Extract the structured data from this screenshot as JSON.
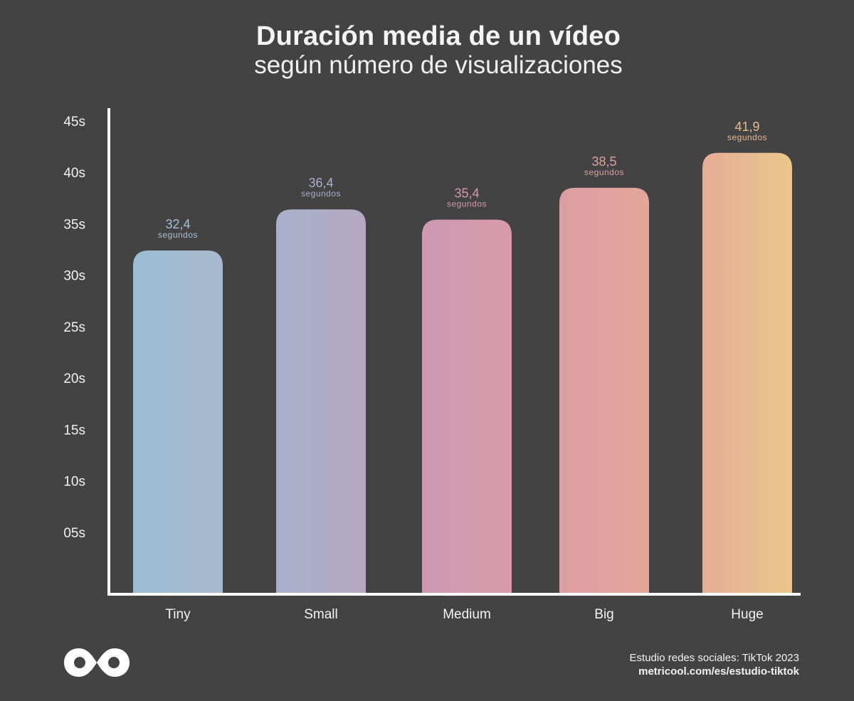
{
  "header": {
    "title": "Duración media de un vídeo",
    "subtitle": "según número de visualizaciones"
  },
  "chart_data": {
    "type": "bar",
    "title": "Duración media de un vídeo",
    "subtitle": "según número de visualizaciones",
    "categories": [
      "Tiny",
      "Small",
      "Medium",
      "Big",
      "Huge"
    ],
    "values": [
      32.4,
      36.4,
      35.4,
      38.5,
      41.9
    ],
    "value_labels": [
      "32,4",
      "36,4",
      "35,4",
      "38,5",
      "41,9"
    ],
    "value_unit": "segundos",
    "yticks": [
      "05s",
      "10s",
      "15s",
      "20s",
      "25s",
      "30s",
      "35s",
      "40s",
      "45s"
    ],
    "ytick_values": [
      5,
      10,
      15,
      20,
      25,
      30,
      35,
      40,
      45
    ],
    "ylim": [
      0,
      45
    ],
    "xlabel": "",
    "ylabel": "",
    "grid": false,
    "bar_colors": [
      [
        "#9dbdd2",
        "#a8bad0"
      ],
      [
        "#a9b0cd",
        "#b5a9c3"
      ],
      [
        "#cf99b3",
        "#d89aaa"
      ],
      [
        "#dc9ea2",
        "#e3a69b"
      ],
      [
        "#e6ad97",
        "#ebc68b"
      ]
    ],
    "label_colors": [
      "#a7c0d3",
      "#adb0cb",
      "#d49ab0",
      "#dda0a1",
      "#e7b98e"
    ]
  },
  "footer": {
    "logo": "metricool-infinity-icon",
    "source_line": "Estudio redes sociales: TikTok 2023",
    "source_url": "metricool.com/es/estudio-tiktok"
  }
}
